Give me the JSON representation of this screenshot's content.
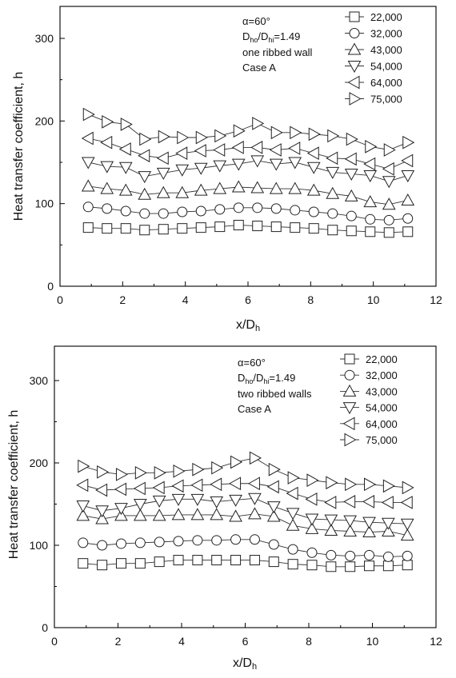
{
  "chart_data": [
    {
      "type": "line",
      "title": "",
      "xlabel": "x/D",
      "xlabel_sub": "h",
      "ylabel": "Heat transfer coefficient, h",
      "xlim": [
        0,
        12
      ],
      "ylim": [
        0,
        340
      ],
      "xticks": [
        "0",
        "2",
        "4",
        "6",
        "8",
        "10",
        "12"
      ],
      "yticks": [
        "0",
        "100",
        "200",
        "300"
      ],
      "grid": false,
      "legend_position": "top-right",
      "annotations": {
        "alpha": "α=60°",
        "ratio_a": "D",
        "ratio_a_sub": "ho",
        "ratio_b": "/D",
        "ratio_b_sub": "hi",
        "ratio_val": "=1.49",
        "walls": "one ribbed wall",
        "case": "Case A"
      },
      "x": [
        0.9,
        1.5,
        2.1,
        2.7,
        3.3,
        3.9,
        4.5,
        5.1,
        5.7,
        6.3,
        6.9,
        7.5,
        8.1,
        8.7,
        9.3,
        9.9,
        10.5,
        11.1
      ],
      "series": [
        {
          "name": "22,000",
          "marker": "square",
          "values": [
            71,
            70,
            70,
            68,
            69,
            70,
            71,
            72,
            74,
            73,
            72,
            71,
            70,
            68,
            67,
            66,
            65,
            66
          ]
        },
        {
          "name": "32,000",
          "marker": "circle",
          "values": [
            96,
            94,
            91,
            88,
            88,
            90,
            91,
            93,
            95,
            95,
            94,
            92,
            90,
            88,
            85,
            81,
            80,
            82
          ]
        },
        {
          "name": "43,000",
          "marker": "triangle-up",
          "values": [
            121,
            118,
            116,
            111,
            113,
            113,
            116,
            118,
            120,
            119,
            118,
            118,
            116,
            112,
            109,
            102,
            99,
            104
          ]
        },
        {
          "name": "54,000",
          "marker": "triangle-down",
          "values": [
            150,
            145,
            144,
            133,
            137,
            141,
            143,
            146,
            148,
            152,
            148,
            150,
            144,
            138,
            136,
            134,
            127,
            134
          ]
        },
        {
          "name": "64,000",
          "marker": "triangle-left",
          "values": [
            179,
            174,
            166,
            158,
            155,
            161,
            164,
            165,
            168,
            168,
            165,
            167,
            161,
            155,
            154,
            148,
            142,
            152
          ]
        },
        {
          "name": "75,000",
          "marker": "triangle-right",
          "values": [
            208,
            199,
            196,
            178,
            181,
            180,
            180,
            182,
            188,
            197,
            186,
            186,
            184,
            182,
            178,
            169,
            165,
            174
          ]
        }
      ]
    },
    {
      "type": "line",
      "title": "",
      "xlabel": "x/D",
      "xlabel_sub": "h",
      "ylabel": "Heat transfer coefficient, h",
      "xlim": [
        0,
        12
      ],
      "ylim": [
        0,
        340
      ],
      "xticks": [
        "0",
        "2",
        "4",
        "6",
        "8",
        "10",
        "12"
      ],
      "yticks": [
        "0",
        "100",
        "200",
        "300"
      ],
      "grid": false,
      "legend_position": "top-right",
      "annotations": {
        "alpha": "α=60°",
        "ratio_a": "D",
        "ratio_a_sub": "ho",
        "ratio_b": "/D",
        "ratio_b_sub": "hi",
        "ratio_val": "=1.49",
        "walls": "two ribbed walls",
        "case": "Case A"
      },
      "x": [
        0.9,
        1.5,
        2.1,
        2.7,
        3.3,
        3.9,
        4.5,
        5.1,
        5.7,
        6.3,
        6.9,
        7.5,
        8.1,
        8.7,
        9.3,
        9.9,
        10.5,
        11.1
      ],
      "series": [
        {
          "name": "22,000",
          "marker": "square",
          "values": [
            78,
            76,
            78,
            78,
            80,
            82,
            82,
            82,
            82,
            82,
            80,
            77,
            76,
            74,
            74,
            75,
            75,
            76
          ]
        },
        {
          "name": "32,000",
          "marker": "circle",
          "values": [
            103,
            100,
            102,
            103,
            104,
            105,
            106,
            106,
            107,
            107,
            101,
            95,
            91,
            88,
            87,
            88,
            86,
            87
          ]
        },
        {
          "name": "43,000",
          "marker": "triangle-up",
          "values": [
            136,
            132,
            136,
            136,
            136,
            137,
            137,
            137,
            135,
            138,
            135,
            124,
            120,
            118,
            117,
            116,
            117,
            112
          ]
        },
        {
          "name": "54,000",
          "marker": "triangle-down",
          "values": [
            148,
            142,
            145,
            150,
            154,
            156,
            156,
            153,
            155,
            157,
            147,
            139,
            132,
            131,
            130,
            128,
            127,
            126
          ]
        },
        {
          "name": "64,000",
          "marker": "triangle-left",
          "values": [
            173,
            167,
            168,
            169,
            170,
            172,
            173,
            174,
            175,
            175,
            171,
            163,
            156,
            152,
            153,
            153,
            152,
            152
          ]
        },
        {
          "name": "75,000",
          "marker": "triangle-right",
          "values": [
            196,
            189,
            186,
            188,
            188,
            190,
            192,
            194,
            201,
            206,
            192,
            182,
            179,
            176,
            174,
            174,
            172,
            170
          ]
        }
      ]
    }
  ]
}
